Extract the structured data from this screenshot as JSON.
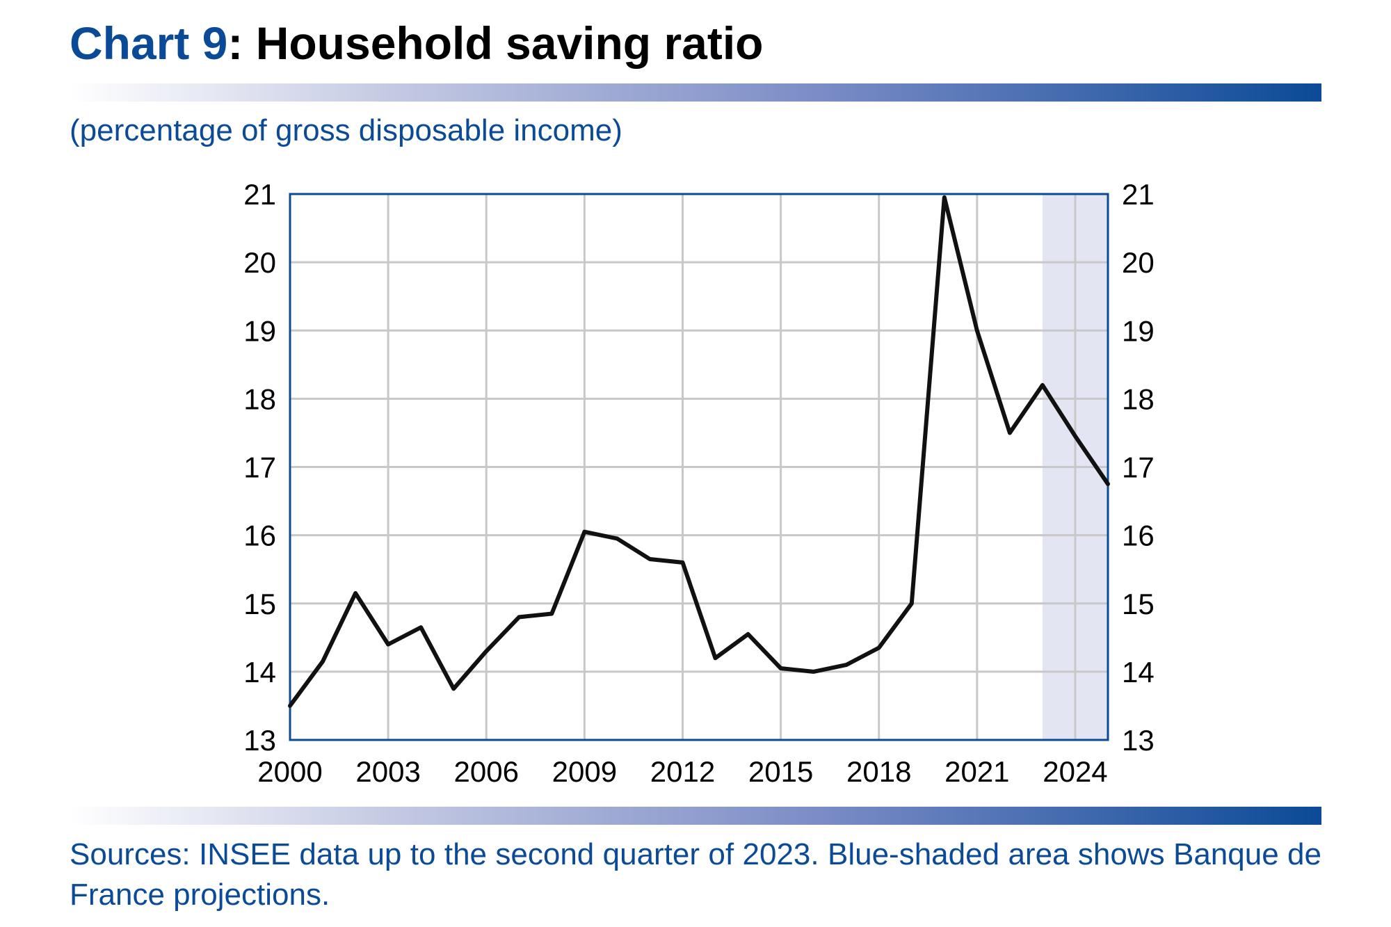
{
  "header": {
    "title_lead": "Chart 9",
    "title_rest": ": Household saving ratio",
    "subtitle": "(percentage of gross disposable income)"
  },
  "footer": {
    "source": "Sources: INSEE data up to the second quarter of 2023. Blue-shaded area shows Banque de France projections."
  },
  "colors": {
    "brand_blue": "#0b4a97",
    "line": "#111111",
    "grid": "#c8c8c8",
    "projection_shade": "#e3e5f2"
  },
  "chart_data": {
    "type": "line",
    "title": "Household saving ratio",
    "ylabel": "(percentage of gross disposable income)",
    "xlim": [
      2000,
      2025
    ],
    "ylim": [
      13,
      21
    ],
    "x_ticks": [
      2000,
      2003,
      2006,
      2009,
      2012,
      2015,
      2018,
      2021,
      2024
    ],
    "x_tick_labels": [
      "2000",
      "2003",
      "2006",
      "2009",
      "2012",
      "2015",
      "2018",
      "2021",
      "2024"
    ],
    "y_ticks": [
      13,
      14,
      15,
      16,
      17,
      18,
      19,
      20,
      21
    ],
    "y_tick_labels": [
      "13",
      "14",
      "15",
      "16",
      "17",
      "18",
      "19",
      "20",
      "21"
    ],
    "right_axis_mirrors_left": true,
    "vertical_grid": [
      2003,
      2006,
      2009,
      2012,
      2015,
      2018,
      2021,
      2024
    ],
    "horizontal_grid": [
      14,
      15,
      16,
      17,
      18,
      19,
      20
    ],
    "projection_range": [
      2023,
      2025
    ],
    "series": [
      {
        "x": [
          2000,
          2001,
          2002,
          2003,
          2004,
          2005,
          2006,
          2007,
          2008,
          2009,
          2010,
          2011,
          2012,
          2013,
          2014,
          2015,
          2016,
          2017,
          2018,
          2019,
          2020,
          2021,
          2022,
          2023,
          2024,
          2025
        ],
        "values": [
          13.5,
          14.15,
          15.15,
          14.4,
          14.65,
          13.75,
          14.3,
          14.8,
          14.85,
          16.05,
          15.95,
          15.65,
          15.6,
          14.2,
          14.55,
          14.05,
          14.0,
          14.1,
          14.35,
          15.0,
          20.95,
          19.0,
          17.5,
          18.2,
          17.45,
          16.75
        ]
      }
    ]
  }
}
